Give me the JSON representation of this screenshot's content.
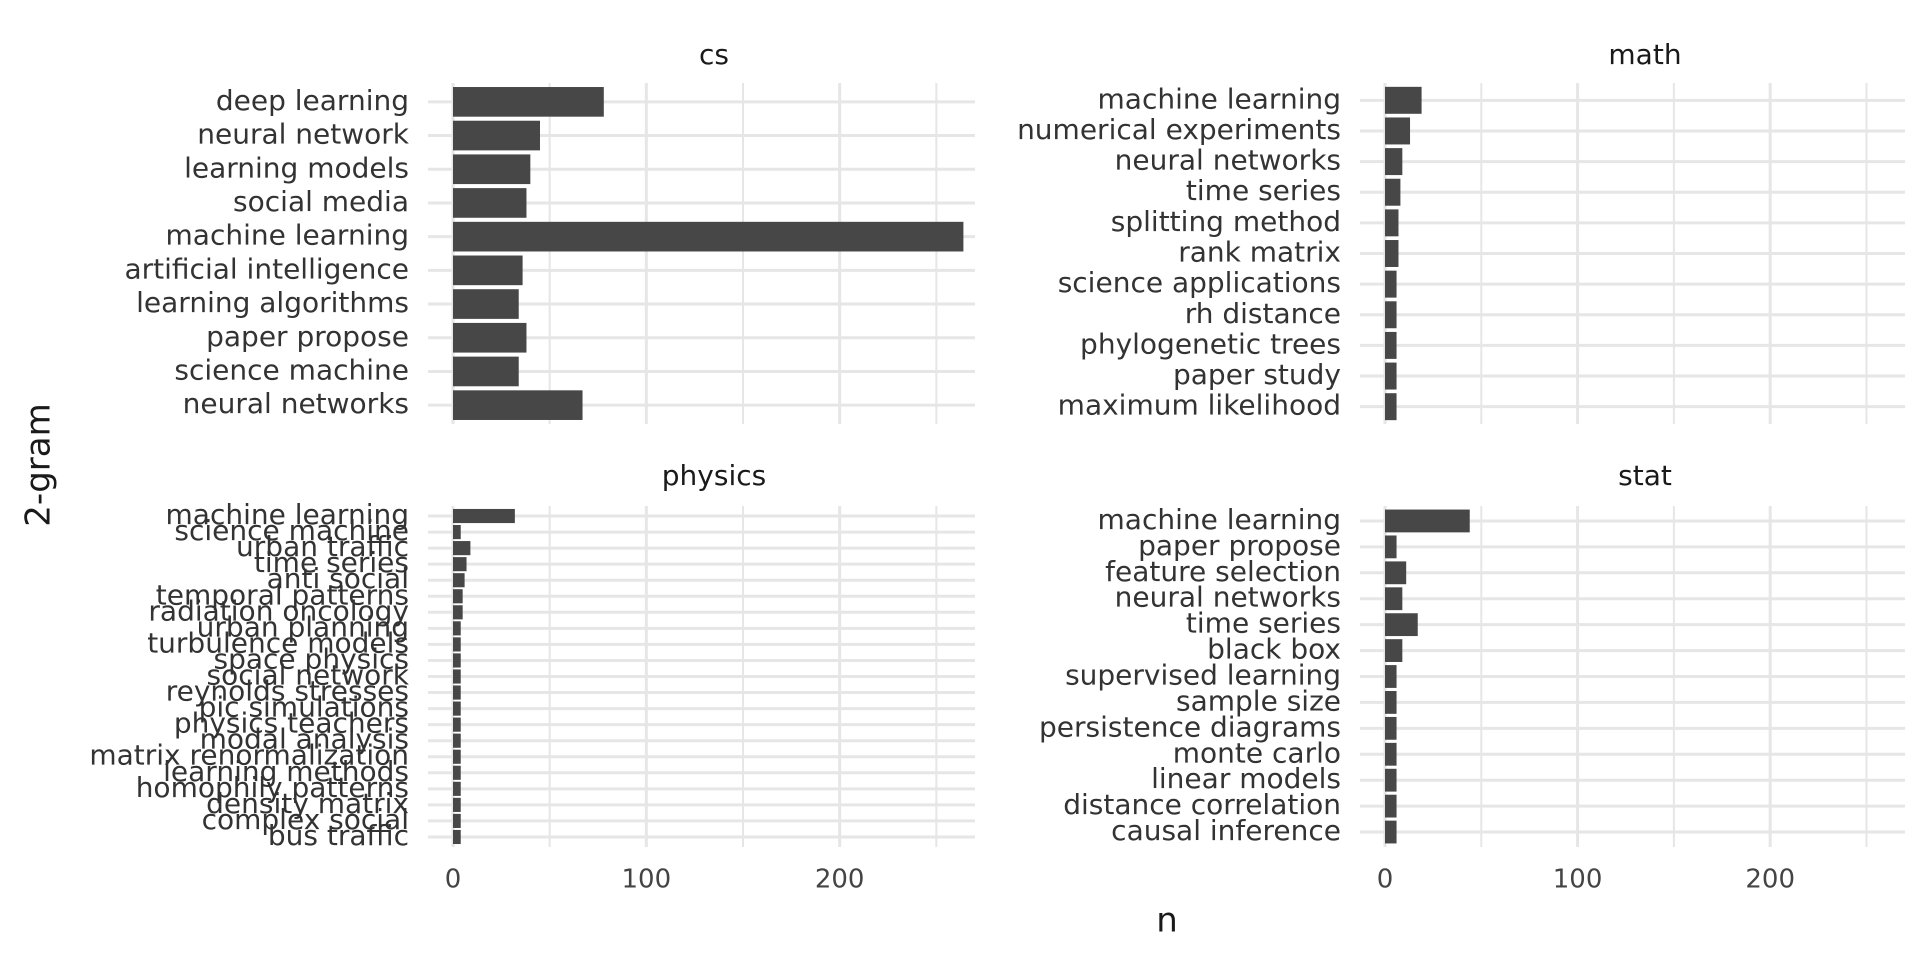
{
  "chart_data": {
    "type": "bar",
    "orientation": "horizontal",
    "layout": "facet_wrap 2x2, shared x scale",
    "xlabel": "n",
    "ylabel": "2-gram",
    "xlim": [
      0,
      270
    ],
    "x_ticks": [
      0,
      100,
      200
    ],
    "x_tick_labels": [
      "0",
      "100",
      "200"
    ],
    "grid": true,
    "bar_color": "#474747",
    "grid_color": "#e6e6e6",
    "facets": [
      {
        "title": "cs",
        "categories": [
          "deep learning",
          "neural network",
          "learning models",
          "social media",
          "machine learning",
          "artificial intelligence",
          "learning algorithms",
          "paper propose",
          "science machine",
          "neural networks"
        ],
        "values": [
          78,
          45,
          40,
          38,
          264,
          36,
          34,
          38,
          34,
          67
        ],
        "show_x_ticks": false
      },
      {
        "title": "math",
        "categories": [
          "machine learning",
          "numerical experiments",
          "neural networks",
          "time series",
          "splitting method",
          "rank matrix",
          "science applications",
          "rh distance",
          "phylogenetic trees",
          "paper study",
          "maximum likelihood"
        ],
        "values": [
          19,
          13,
          9,
          8,
          7,
          7,
          6,
          6,
          6,
          6,
          6
        ],
        "show_x_ticks": false
      },
      {
        "title": "physics",
        "categories": [
          "machine learning",
          "science machine",
          "urban traffic",
          "time series",
          "anti social",
          "temporal patterns",
          "radiation oncology",
          "urban planning",
          "turbulence models",
          "space physics",
          "social network",
          "reynolds stresses",
          "pic simulations",
          "physics teachers",
          "modal analysis",
          "matrix renormalization",
          "learning methods",
          "homophily patterns",
          "density matrix",
          "complex social",
          "bus traffic"
        ],
        "values": [
          32,
          4,
          9,
          7,
          6,
          5,
          5,
          4,
          4,
          4,
          4,
          4,
          4,
          4,
          4,
          4,
          4,
          4,
          4,
          4,
          4
        ],
        "show_x_ticks": true
      },
      {
        "title": "stat",
        "categories": [
          "machine learning",
          "paper propose",
          "feature selection",
          "neural networks",
          "time series",
          "black box",
          "supervised learning",
          "sample size",
          "persistence diagrams",
          "monte carlo",
          "linear models",
          "distance correlation",
          "causal inference"
        ],
        "values": [
          44,
          6,
          11,
          9,
          17,
          9,
          6,
          6,
          6,
          6,
          6,
          6,
          6
        ],
        "show_x_ticks": true
      }
    ]
  }
}
